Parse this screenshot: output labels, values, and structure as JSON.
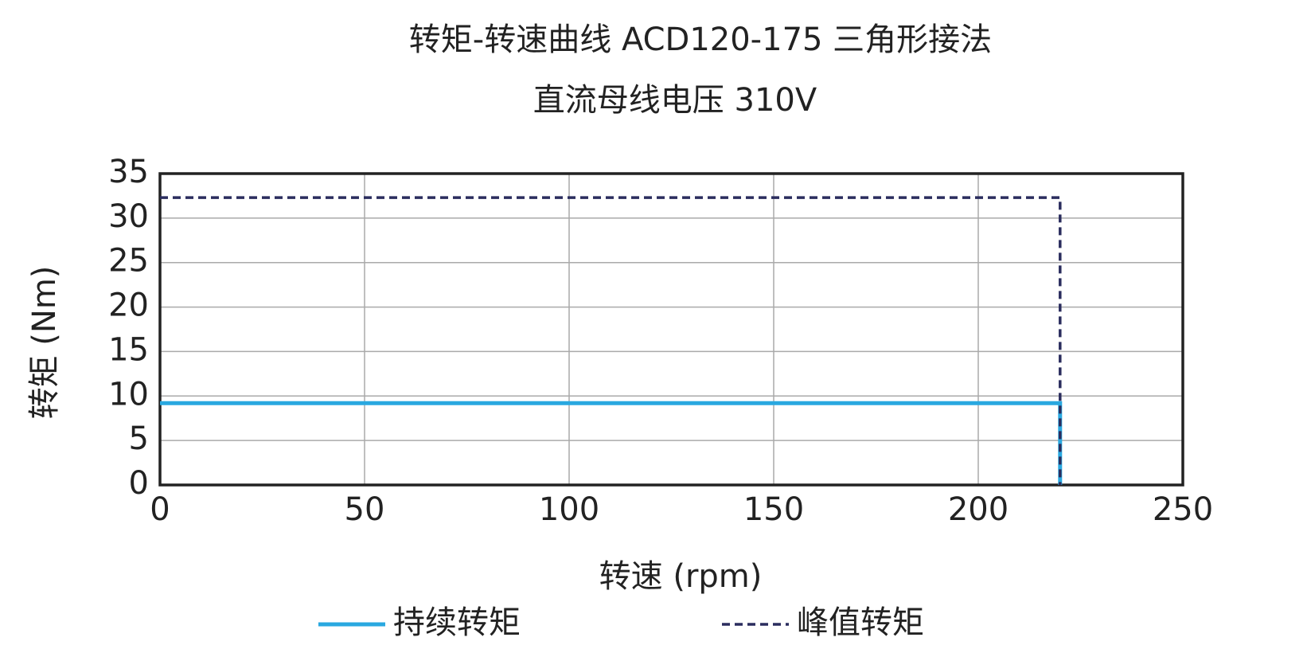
{
  "chart_data": {
    "type": "line",
    "title": "转矩-转速曲线 ACD120-175 三角形接法",
    "subtitle": "直流母线电压 310V",
    "xlabel": "转速 (rpm)",
    "ylabel": "转矩 (Nm)",
    "x": [
      0,
      220,
      220
    ],
    "series": [
      {
        "name": "持续转矩",
        "color": "#29a8e0",
        "style": "solid",
        "values": [
          9.2,
          9.2,
          0
        ]
      },
      {
        "name": "峰值转矩",
        "color": "#2b2d5e",
        "style": "dashed",
        "values": [
          32.3,
          32.3,
          0
        ]
      }
    ],
    "xlim": [
      0,
      250
    ],
    "xticks": [
      0,
      50,
      100,
      150,
      200,
      250
    ],
    "ylim": [
      0,
      35
    ],
    "yticks": [
      0,
      5,
      10,
      15,
      20,
      25,
      30,
      35
    ],
    "grid": true,
    "legend": "bottom"
  }
}
